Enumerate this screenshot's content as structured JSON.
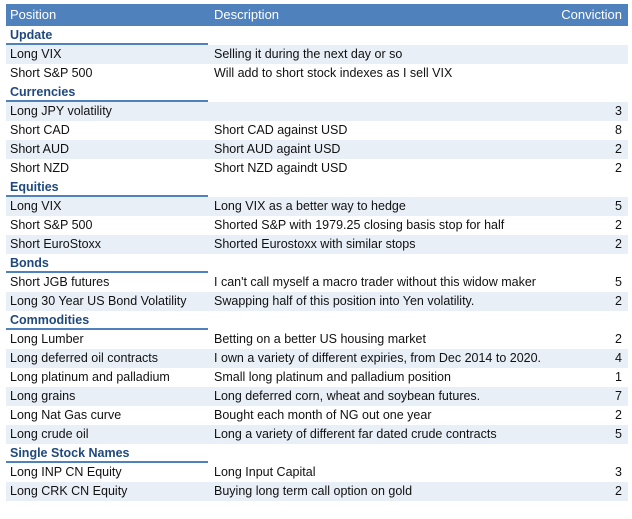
{
  "header": {
    "position": "Position",
    "description": "Description",
    "conviction": "Conviction"
  },
  "sections": [
    {
      "title": "Update",
      "rows": [
        {
          "position": "Long VIX",
          "description": "Selling it during the next day or so",
          "conviction": ""
        },
        {
          "position": "Short S&P 500",
          "description": "Will add to short stock indexes as I sell VIX",
          "conviction": ""
        }
      ]
    },
    {
      "title": "Currencies",
      "rows": [
        {
          "position": "Long JPY volatility",
          "description": "",
          "conviction": "3"
        },
        {
          "position": "Short CAD",
          "description": "Short CAD against USD",
          "conviction": "8"
        },
        {
          "position": "Short AUD",
          "description": "Short AUD againt USD",
          "conviction": "2"
        },
        {
          "position": "Short NZD",
          "description": "Short NZD againdt USD",
          "conviction": "2"
        }
      ]
    },
    {
      "title": "Equities",
      "rows": [
        {
          "position": "Long VIX",
          "description": "Long VIX as a better way to hedge",
          "conviction": "5"
        },
        {
          "position": "Short S&P 500",
          "description": "Shorted S&P with 1979.25 closing basis stop for half",
          "conviction": "2"
        },
        {
          "position": "Short EuroStoxx",
          "description": "Shorted Eurostoxx with similar stops",
          "conviction": "2"
        }
      ]
    },
    {
      "title": "Bonds",
      "rows": [
        {
          "position": "Short JGB futures",
          "description": "I can't call myself a macro trader without this widow maker",
          "conviction": "5"
        },
        {
          "position": "Long 30 Year US Bond Volatility",
          "description": "Swapping half of this position into Yen volatility.",
          "conviction": "2"
        }
      ]
    },
    {
      "title": "Commodities",
      "rows": [
        {
          "position": "Long Lumber",
          "description": "Betting on a better US housing market",
          "conviction": "2"
        },
        {
          "position": "Long deferred oil contracts",
          "description": "I own a variety of different expiries, from Dec 2014 to 2020.",
          "conviction": "4"
        },
        {
          "position": "Long platinum and palladium",
          "description": "Small long platinum and palladium position",
          "conviction": "1"
        },
        {
          "position": "Long grains",
          "description": "Long deferred corn, wheat and soybean futures.",
          "conviction": "7"
        },
        {
          "position": "Long Nat Gas curve",
          "description": "Bought each month of NG out one year",
          "conviction": "2"
        },
        {
          "position": "Long crude oil",
          "description": "Long a variety of different far dated crude contracts",
          "conviction": "5"
        }
      ]
    },
    {
      "title": "Single Stock Names",
      "rows": [
        {
          "position": "Long INP CN Equity",
          "description": "Long Input Capital",
          "conviction": "3"
        },
        {
          "position": "Long CRK CN Equity",
          "description": "Buying long term call option on gold",
          "conviction": "2"
        }
      ]
    }
  ]
}
